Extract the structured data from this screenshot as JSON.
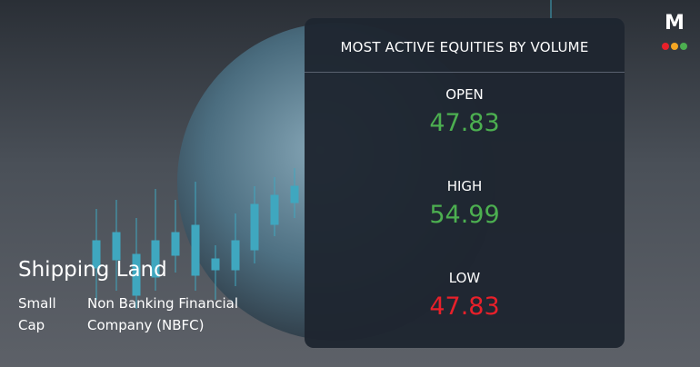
{
  "company": {
    "name": "Shipping Land",
    "cap": "Small Cap",
    "sector": "Non Banking Financial Company (NBFC)"
  },
  "logo": "M",
  "panel": {
    "title": "MOST ACTIVE EQUITIES BY VOLUME",
    "stats": [
      {
        "label": "OPEN",
        "value": 47.83,
        "trend": "up"
      },
      {
        "label": "HIGH",
        "value": 54.99,
        "trend": "up"
      },
      {
        "label": "LOW",
        "value": 47.83,
        "trend": "down"
      }
    ]
  }
}
